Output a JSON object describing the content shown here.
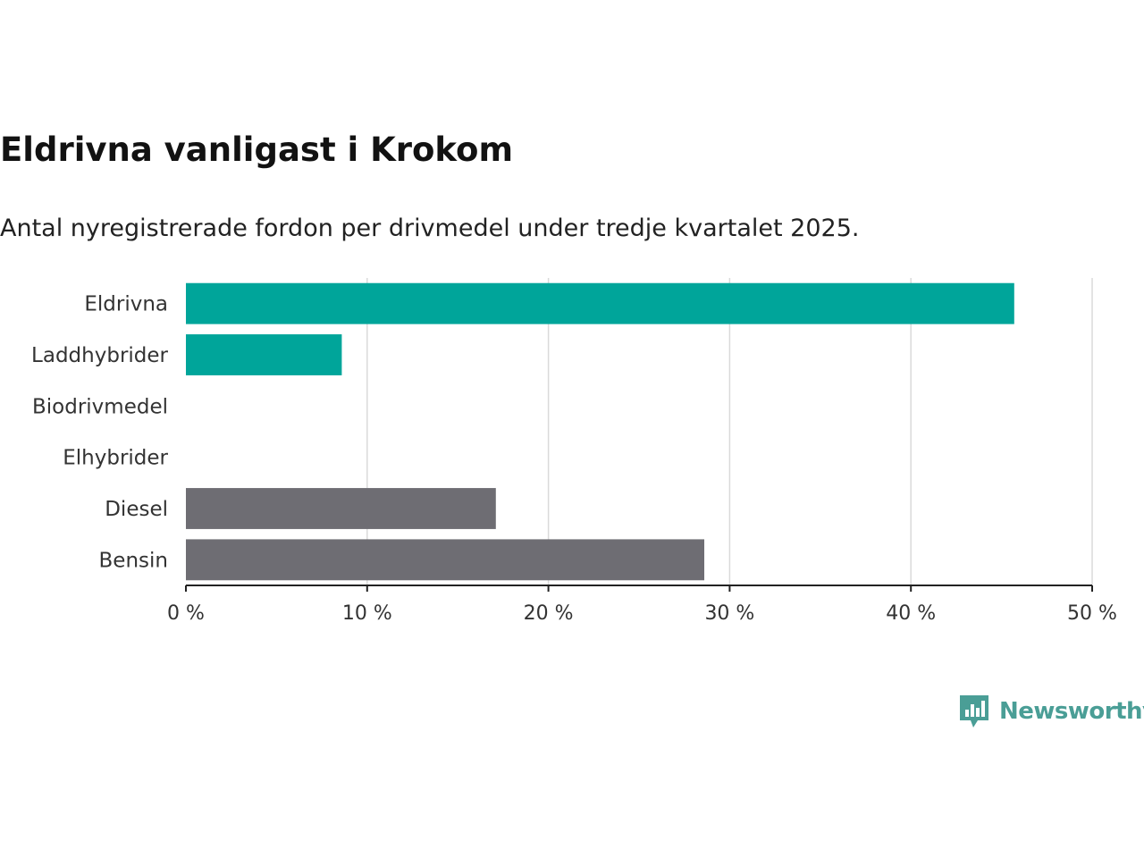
{
  "header": {
    "title": "Eldrivna vanligast i Krokom",
    "subtitle": "Antal nyregistrerade fordon per drivmedel under tredje kvartalet 2025."
  },
  "brand": {
    "name": "Newsworthy",
    "icon": "newsworthy-logo-icon",
    "color": "#4a9e96"
  },
  "chart_data": {
    "type": "bar",
    "orientation": "horizontal",
    "categories": [
      "Eldrivna",
      "Laddhybrider",
      "Biodrivmedel",
      "Elhybrider",
      "Diesel",
      "Bensin"
    ],
    "values": [
      45.7,
      8.6,
      0,
      0,
      17.1,
      28.6
    ],
    "colors": [
      "#00a59a",
      "#00a59a",
      "#00a59a",
      "#00a59a",
      "#6e6d73",
      "#6e6d73"
    ],
    "xlim": [
      0,
      50
    ],
    "xticks": [
      0,
      10,
      20,
      30,
      40,
      50
    ],
    "xtick_labels": [
      "0 %",
      "10 %",
      "20 %",
      "30 %",
      "40 %",
      "50 %"
    ],
    "grid": "vertical",
    "title": "Eldrivna vanligast i Krokom",
    "xlabel": "",
    "ylabel": ""
  }
}
